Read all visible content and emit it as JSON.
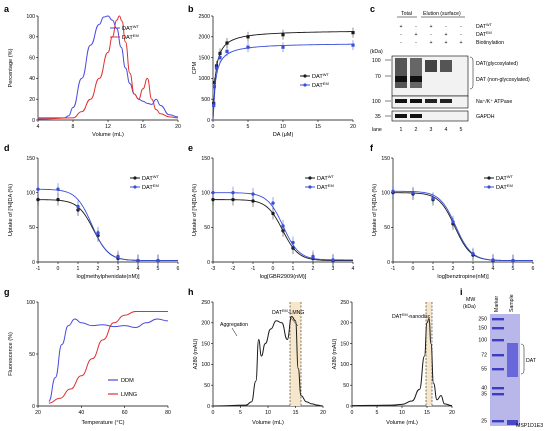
{
  "colors": {
    "wt": "#1a1a1a",
    "em": "#3a4fd8",
    "red": "#e03030",
    "blue": "#4a4ae0",
    "band": "#f5e6cc",
    "gel": "#5a5ad8"
  },
  "panels": {
    "a": "a",
    "b": "b",
    "c": "c",
    "d": "d",
    "e": "e",
    "f": "f",
    "g": "g",
    "h": "h",
    "i": "i"
  },
  "chart_data": [
    {
      "panel": "a",
      "type": "line",
      "xlabel": "Volume (mL)",
      "ylabel": "Percentage (%)",
      "xticks": [
        "4",
        "8",
        "12",
        "16",
        "20"
      ],
      "yticks": [
        "0",
        "20",
        "40",
        "60",
        "80",
        "100"
      ],
      "xlim": [
        4,
        20
      ],
      "ylim": [
        0,
        100
      ],
      "series": [
        {
          "name": "DAT",
          "sup": "WT",
          "color": "#4a4ae0",
          "x": [
            4,
            7,
            7.5,
            8,
            9,
            10,
            11,
            11.5,
            12,
            12.5,
            13,
            13.5,
            14,
            14.5,
            15,
            15.5,
            16,
            16.5,
            17,
            17.5,
            18,
            19,
            20
          ],
          "y": [
            2,
            2,
            4,
            12,
            40,
            72,
            92,
            99,
            100,
            96,
            88,
            70,
            50,
            35,
            25,
            20,
            18,
            16,
            15,
            20,
            14,
            5,
            3
          ]
        },
        {
          "name": "DAT",
          "sup": "EM",
          "color": "#e03030",
          "x": [
            4,
            8,
            9,
            10,
            11,
            12,
            12.5,
            13,
            13.3,
            13.6,
            14,
            14.5,
            15,
            15.5,
            16,
            16.5,
            17,
            17.5,
            18,
            19,
            20
          ],
          "y": [
            1,
            2,
            8,
            20,
            40,
            65,
            80,
            96,
            100,
            95,
            75,
            45,
            25,
            20,
            30,
            40,
            20,
            10,
            6,
            3,
            2
          ]
        }
      ]
    },
    {
      "panel": "b",
      "type": "scatter",
      "xlabel": "DA (μM)",
      "ylabel": "CPM",
      "xticks": [
        "0",
        "5",
        "10",
        "15",
        "20"
      ],
      "yticks": [
        "0",
        "500",
        "1000",
        "1500",
        "2000",
        "2500"
      ],
      "xlim": [
        0,
        20
      ],
      "ylim": [
        0,
        2500
      ],
      "series": [
        {
          "name": "DAT",
          "sup": "WT",
          "color": "#1a1a1a",
          "x": [
            0.1,
            0.2,
            0.5,
            1,
            2,
            5,
            10,
            20
          ],
          "y": [
            400,
            900,
            1300,
            1600,
            1850,
            2000,
            2050,
            2100
          ]
        },
        {
          "name": "DAT",
          "sup": "EM",
          "color": "#3a4fd8",
          "x": [
            0.1,
            0.2,
            0.5,
            1,
            2,
            5,
            10,
            20
          ],
          "y": [
            350,
            800,
            1250,
            1500,
            1650,
            1750,
            1750,
            1800
          ]
        }
      ]
    },
    {
      "panel": "d",
      "type": "scatter",
      "xlabel": "log[methylphenidate(nM)]",
      "ylabel": "Uptake of [³H]DA (%)",
      "xticks": [
        "-1",
        "0",
        "1",
        "2",
        "3",
        "4",
        "5",
        "6"
      ],
      "yticks": [
        "0",
        "50",
        "100",
        "150"
      ],
      "xlim": [
        -1,
        6
      ],
      "ylim": [
        0,
        150
      ],
      "series": [
        {
          "name": "DAT",
          "sup": "WT",
          "color": "#1a1a1a",
          "x": [
            -1,
            0,
            1,
            2,
            3,
            4,
            5
          ],
          "y": [
            90,
            90,
            75,
            38,
            5,
            2,
            2
          ]
        },
        {
          "name": "DAT",
          "sup": "EM",
          "color": "#3a4fd8",
          "x": [
            -1,
            0,
            1,
            2,
            3,
            4,
            5
          ],
          "y": [
            105,
            105,
            80,
            42,
            8,
            2,
            2
          ]
        }
      ]
    },
    {
      "panel": "e",
      "type": "scatter",
      "xlabel": "log[GBR2909(nM)]",
      "ylabel": "Uptake of [³H]DA (%)",
      "xticks": [
        "-3",
        "-2",
        "-1",
        "0",
        "1",
        "2",
        "3",
        "4"
      ],
      "yticks": [
        "0",
        "50",
        "100",
        "150"
      ],
      "xlim": [
        -3,
        4
      ],
      "ylim": [
        0,
        150
      ],
      "series": [
        {
          "name": "DAT",
          "sup": "WT",
          "color": "#1a1a1a",
          "x": [
            -3,
            -2,
            -1,
            0,
            0.5,
            1,
            2,
            3
          ],
          "y": [
            90,
            90,
            88,
            70,
            45,
            20,
            5,
            2
          ]
        },
        {
          "name": "DAT",
          "sup": "EM",
          "color": "#3a4fd8",
          "x": [
            -3,
            -2,
            -1,
            0,
            0.5,
            1,
            2,
            3
          ],
          "y": [
            100,
            100,
            98,
            85,
            52,
            28,
            8,
            3
          ]
        }
      ]
    },
    {
      "panel": "f",
      "type": "scatter",
      "xlabel": "log[benztropine(nM)]",
      "ylabel": "Uptake of [³H]DA (%)",
      "xticks": [
        "-1",
        "0",
        "1",
        "2",
        "3",
        "4",
        "5",
        "6"
      ],
      "yticks": [
        "0",
        "50",
        "100",
        "150"
      ],
      "xlim": [
        -1,
        6
      ],
      "ylim": [
        0,
        150
      ],
      "series": [
        {
          "name": "DAT",
          "sup": "WT",
          "color": "#1a1a1a",
          "x": [
            -1,
            0,
            1,
            2,
            3,
            4,
            5
          ],
          "y": [
            100,
            98,
            90,
            55,
            10,
            2,
            2
          ]
        },
        {
          "name": "DAT",
          "sup": "EM",
          "color": "#3a4fd8",
          "x": [
            -1,
            0,
            1,
            2,
            3,
            4,
            5
          ],
          "y": [
            102,
            100,
            92,
            58,
            12,
            3,
            2
          ]
        }
      ]
    },
    {
      "panel": "g",
      "type": "line",
      "xlabel": "Temperature (°C)",
      "ylabel": "Fluorescence (%)",
      "xticks": [
        "20",
        "40",
        "60",
        "80"
      ],
      "yticks": [
        "0",
        "50",
        "100"
      ],
      "xlim": [
        20,
        80
      ],
      "ylim": [
        0,
        110
      ],
      "series": [
        {
          "name": "DDM",
          "color": "#4a4ae0",
          "x": [
            25,
            28,
            31,
            34,
            37,
            40,
            45,
            50,
            55,
            60,
            65,
            70,
            75,
            80
          ],
          "y": [
            5,
            30,
            65,
            85,
            92,
            88,
            85,
            86,
            84,
            85,
            83,
            88,
            92,
            90
          ]
        },
        {
          "name": "LMNG",
          "color": "#e03030",
          "x": [
            25,
            30,
            35,
            40,
            45,
            50,
            55,
            60,
            65,
            70,
            75,
            80
          ],
          "y": [
            3,
            8,
            18,
            32,
            50,
            70,
            88,
            96,
            100,
            100,
            100,
            100
          ]
        }
      ]
    },
    {
      "panel": "h1",
      "type": "line",
      "xlabel": "Volume (mL)",
      "ylabel": "A280 (mAU)",
      "xticks": [
        "0",
        "5",
        "10",
        "15",
        "20"
      ],
      "yticks": [
        "0",
        "50",
        "100",
        "150",
        "200",
        "250"
      ],
      "xlim": [
        0,
        20
      ],
      "ylim": [
        0,
        250
      ],
      "series": [
        {
          "name": "",
          "color": "#1a1a1a",
          "x": [
            0,
            6,
            7,
            7.8,
            8.3,
            8.8,
            9.5,
            10.5,
            11.5,
            12.5,
            13.5,
            14.3,
            15,
            15.5,
            16,
            17,
            18,
            19,
            20
          ],
          "y": [
            0,
            2,
            10,
            60,
            160,
            120,
            150,
            185,
            205,
            200,
            160,
            215,
            205,
            90,
            25,
            10,
            5,
            2,
            0
          ]
        }
      ],
      "annotations": [
        "Aggregation",
        "DAT",
        "EM",
        "-LMNG"
      ]
    },
    {
      "panel": "h2",
      "type": "line",
      "xlabel": "Volume (mL)",
      "ylabel": "A280 (mAU)",
      "xticks": [
        "0",
        "5",
        "10",
        "15",
        "20"
      ],
      "yticks": [
        "0",
        "50",
        "100",
        "150",
        "200",
        "250"
      ],
      "xlim": [
        0,
        20
      ],
      "ylim": [
        0,
        250
      ],
      "series": [
        {
          "name": "",
          "color": "#1a1a1a",
          "x": [
            0,
            8,
            10,
            12,
            13.5,
            14.5,
            15,
            15.4,
            15.8,
            16.3,
            17,
            17.8,
            18.5,
            20
          ],
          "y": [
            1,
            2,
            4,
            12,
            40,
            120,
            200,
            210,
            150,
            55,
            15,
            25,
            5,
            1
          ]
        }
      ],
      "annotations": [
        "DAT",
        "EM",
        "-nanodisc"
      ]
    }
  ],
  "panel_c": {
    "header_total": "Total",
    "header_elution": "Elution (surface)",
    "row_labels": [
      {
        "main": "DAT",
        "sup": "WT"
      },
      {
        "main": "DAT",
        "sup": "EM"
      },
      {
        "main": "Biotinylation",
        "sup": ""
      }
    ],
    "signs": [
      [
        "+",
        "-",
        "+",
        "-",
        "-"
      ],
      [
        "-",
        "+",
        "-",
        "+",
        "-"
      ],
      [
        "-",
        "-",
        "+",
        "+",
        "+"
      ]
    ],
    "kda": "(kDa)",
    "mw": [
      "100",
      "70",
      "100",
      "35"
    ],
    "bands": [
      "DAT(glycosylated)",
      "DAT (non-glycosylated)",
      "Na⁺/K⁺ ATPase",
      "GAPDH"
    ],
    "lane_label": "lane",
    "lanes": [
      "1",
      "2",
      "3",
      "4",
      "5"
    ]
  },
  "panel_i": {
    "mw_title": "MW",
    "mw_unit": "(kDa)",
    "col_marker": "Marker",
    "col_sample": "Sample",
    "ladder": [
      "250",
      "150",
      "100",
      "72",
      "55",
      "40",
      "35",
      "25"
    ],
    "dat": "DAT",
    "msp": "MSP1D1E3"
  }
}
